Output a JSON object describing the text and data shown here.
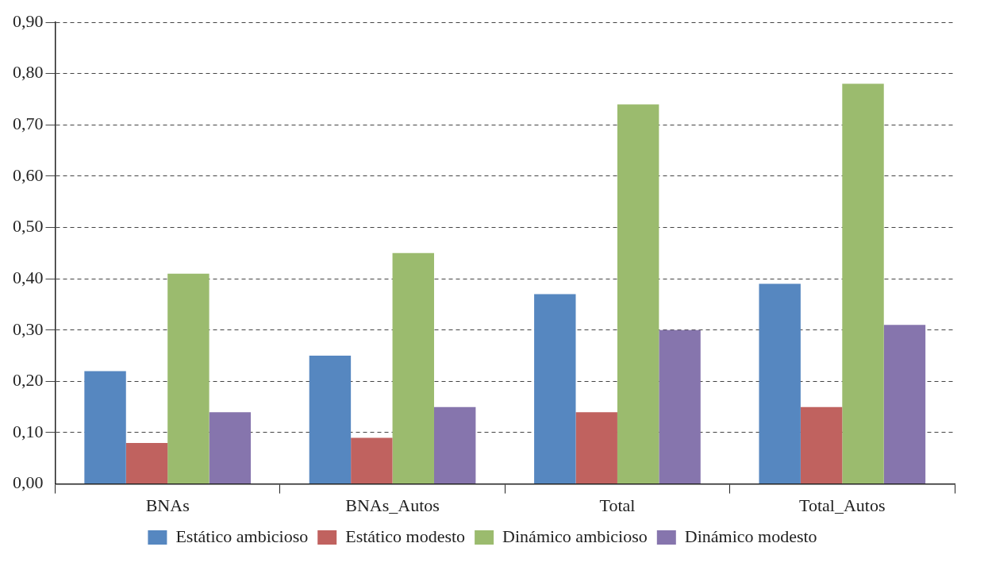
{
  "chart_data": {
    "type": "bar",
    "categories": [
      "BNAs",
      "BNAs_Autos",
      "Total",
      "Total_Autos"
    ],
    "series": [
      {
        "name": "Estático ambicioso",
        "color": "#5687c0",
        "values": [
          0.22,
          0.25,
          0.37,
          0.39
        ]
      },
      {
        "name": "Estático modesto",
        "color": "#c0625f",
        "values": [
          0.08,
          0.09,
          0.14,
          0.15
        ]
      },
      {
        "name": "Dinámico ambicioso",
        "color": "#9bbb6e",
        "values": [
          0.41,
          0.45,
          0.74,
          0.78
        ]
      },
      {
        "name": "Dinámico modesto",
        "color": "#8675ad",
        "values": [
          0.14,
          0.15,
          0.3,
          0.31
        ]
      }
    ],
    "ylim": [
      0,
      0.9
    ],
    "yticks": [
      {
        "value": 0,
        "label": "0,00"
      },
      {
        "value": 0.1,
        "label": "0,10"
      },
      {
        "value": 0.2,
        "label": "0,20"
      },
      {
        "value": 0.3,
        "label": "0,30"
      },
      {
        "value": 0.4,
        "label": "0,40"
      },
      {
        "value": 0.5,
        "label": "0,50"
      },
      {
        "value": 0.6,
        "label": "0,60"
      },
      {
        "value": 0.7,
        "label": "0,70"
      },
      {
        "value": 0.8,
        "label": "0,80"
      },
      {
        "value": 0.9,
        "label": "0,90"
      }
    ],
    "grid": "y",
    "line_style": "dashed",
    "legend": "bottom"
  }
}
